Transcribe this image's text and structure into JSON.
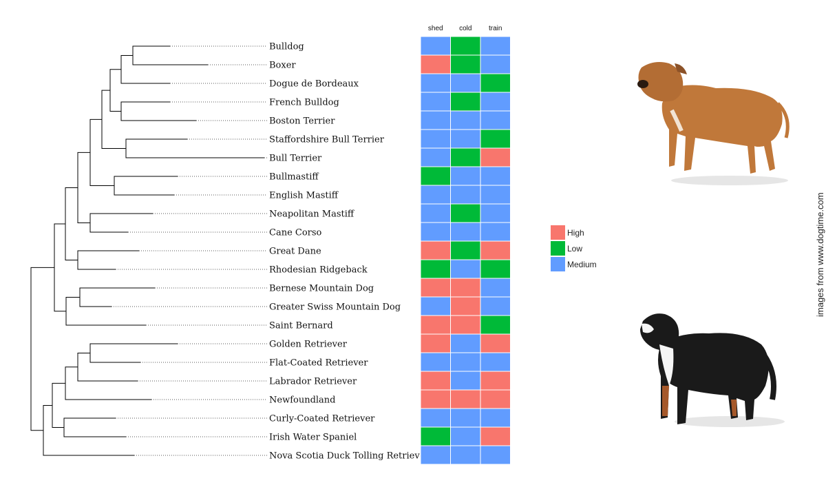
{
  "columns": [
    "shed",
    "cold",
    "train"
  ],
  "breeds": [
    {
      "name": "Bulldog",
      "shed": "Medium",
      "cold": "Low",
      "train": "Medium"
    },
    {
      "name": "Boxer",
      "shed": "High",
      "cold": "Low",
      "train": "Medium"
    },
    {
      "name": "Dogue de Bordeaux",
      "shed": "Medium",
      "cold": "Medium",
      "train": "Low"
    },
    {
      "name": "French Bulldog",
      "shed": "Medium",
      "cold": "Low",
      "train": "Medium"
    },
    {
      "name": "Boston Terrier",
      "shed": "Medium",
      "cold": "Medium",
      "train": "Medium"
    },
    {
      "name": "Staffordshire Bull Terrier",
      "shed": "Medium",
      "cold": "Medium",
      "train": "Low"
    },
    {
      "name": "Bull Terrier",
      "shed": "Medium",
      "cold": "Low",
      "train": "High"
    },
    {
      "name": "Bullmastiff",
      "shed": "Low",
      "cold": "Medium",
      "train": "Medium"
    },
    {
      "name": "English Mastiff",
      "shed": "Medium",
      "cold": "Medium",
      "train": "Medium"
    },
    {
      "name": "Neapolitan Mastiff",
      "shed": "Medium",
      "cold": "Low",
      "train": "Medium"
    },
    {
      "name": "Cane Corso",
      "shed": "Medium",
      "cold": "Medium",
      "train": "Medium"
    },
    {
      "name": "Great Dane",
      "shed": "High",
      "cold": "Low",
      "train": "High"
    },
    {
      "name": "Rhodesian Ridgeback",
      "shed": "Low",
      "cold": "Medium",
      "train": "Low"
    },
    {
      "name": "Bernese Mountain Dog",
      "shed": "High",
      "cold": "High",
      "train": "Medium"
    },
    {
      "name": "Greater Swiss Mountain Dog",
      "shed": "Medium",
      "cold": "High",
      "train": "Medium"
    },
    {
      "name": "Saint Bernard",
      "shed": "High",
      "cold": "High",
      "train": "Low"
    },
    {
      "name": "Golden Retriever",
      "shed": "High",
      "cold": "Medium",
      "train": "High"
    },
    {
      "name": "Flat-Coated Retriever",
      "shed": "Medium",
      "cold": "Medium",
      "train": "Medium"
    },
    {
      "name": "Labrador Retriever",
      "shed": "High",
      "cold": "Medium",
      "train": "High"
    },
    {
      "name": "Newfoundland",
      "shed": "High",
      "cold": "High",
      "train": "High"
    },
    {
      "name": "Curly-Coated Retriever",
      "shed": "Medium",
      "cold": "Medium",
      "train": "Medium"
    },
    {
      "name": "Irish Water Spaniel",
      "shed": "Low",
      "cold": "Medium",
      "train": "High"
    },
    {
      "name": "Nova Scotia Duck Tolling Retriever",
      "shed": "Medium",
      "cold": "Medium",
      "train": "Medium"
    }
  ],
  "legend": [
    {
      "label": "High",
      "color": "#f8766d"
    },
    {
      "label": "Low",
      "color": "#00ba38"
    },
    {
      "label": "Medium",
      "color": "#619cff"
    }
  ],
  "credit": "images from www.dogtime.com",
  "images": {
    "top": {
      "name": "staffordshire-bull-terrier-photo",
      "coat": "#c0783a"
    },
    "bottom": {
      "name": "bernese-mountain-dog-photo",
      "coat": "#1a1a1a"
    }
  }
}
